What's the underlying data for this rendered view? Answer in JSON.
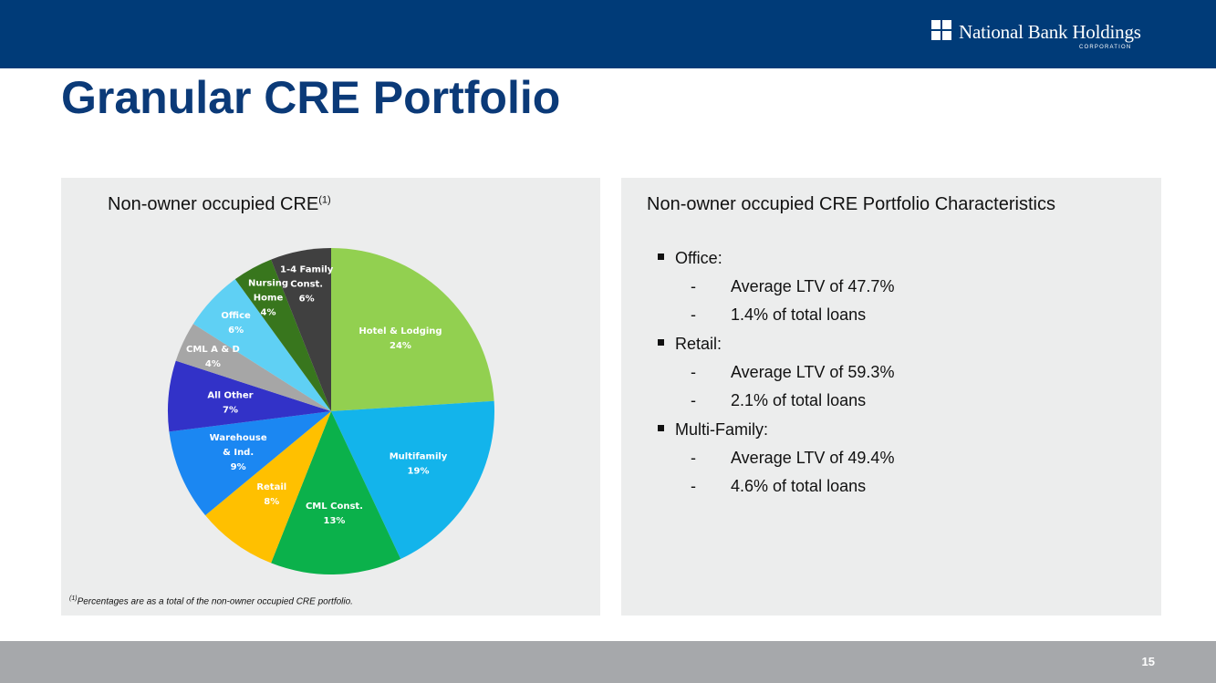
{
  "header": {
    "logo_name": "National Bank Holdings",
    "logo_sub": "CORPORATION",
    "title": "Granular CRE Portfolio"
  },
  "chart_panel": {
    "title": "Non-owner occupied CRE",
    "title_sup": "(1)",
    "footnote_sup": "(1)",
    "footnote": "Percentages are as a total of the non-owner occupied CRE portfolio."
  },
  "chart_data": {
    "type": "pie",
    "title": "Non-owner occupied CRE",
    "unit": "%",
    "slices": [
      {
        "lines": [
          "Hotel & Lodging"
        ],
        "value": 24,
        "label": "24%",
        "color": "#92d050",
        "text_color": "#ffffff"
      },
      {
        "lines": [
          "Multifamily"
        ],
        "value": 19,
        "label": "19%",
        "color": "#13b4eb",
        "text_color": "#ffffff"
      },
      {
        "lines": [
          "CML Const."
        ],
        "value": 13,
        "label": "13%",
        "color": "#0bb14b",
        "text_color": "#ffffff"
      },
      {
        "lines": [
          "Retail"
        ],
        "value": 8,
        "label": "8%",
        "color": "#ffc000",
        "text_color": "#ffffff"
      },
      {
        "lines": [
          "Warehouse",
          "& Ind."
        ],
        "value": 9,
        "label": "9%",
        "color": "#1b87f2",
        "text_color": "#ffffff"
      },
      {
        "lines": [
          "All Other"
        ],
        "value": 7,
        "label": "7%",
        "color": "#3232c8",
        "text_color": "#ffffff"
      },
      {
        "lines": [
          "CML A & D"
        ],
        "value": 4,
        "label": "4%",
        "color": "#a6a6a6",
        "text_color": "#ffffff"
      },
      {
        "lines": [
          "Office"
        ],
        "value": 6,
        "label": "6%",
        "color": "#5fd0f4",
        "text_color": "#ffffff"
      },
      {
        "lines": [
          "Nursing",
          "Home"
        ],
        "value": 4,
        "label": "4%",
        "color": "#38761d",
        "text_color": "#ffffff"
      },
      {
        "lines": [
          "1-4 Family",
          "Const."
        ],
        "value": 6,
        "label": "6%",
        "color": "#404040",
        "text_color": "#ffffff"
      }
    ]
  },
  "characteristics": {
    "title": "Non-owner occupied CRE Portfolio Characteristics",
    "categories": [
      {
        "name": "Office:",
        "items": [
          "Average LTV of 47.7%",
          "1.4% of total loans"
        ]
      },
      {
        "name": "Retail:",
        "items": [
          "Average LTV of 59.3%",
          "2.1% of total loans"
        ]
      },
      {
        "name": "Multi-Family:",
        "items": [
          "Average LTV of 49.4%",
          "4.6% of total loans"
        ]
      }
    ],
    "dash": "-"
  },
  "footer": {
    "page_number": "15"
  }
}
